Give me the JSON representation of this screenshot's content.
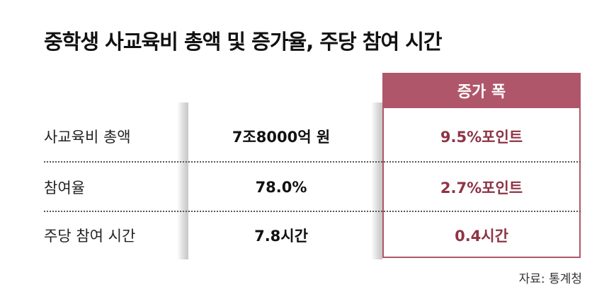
{
  "title": "중학생 사교육비 총액 및 증가율, 주당 참여 시간",
  "table": {
    "header": "증가 폭",
    "rows": [
      [
        "사교육비 총액",
        "7조8000억 원",
        "9.5%포인트"
      ],
      [
        "참여율",
        "78.0%",
        "2.7%포인트"
      ],
      [
        "주당 참여 시간",
        "7.8시간",
        "0.4시간"
      ]
    ]
  },
  "source": "자료: 통계청"
}
